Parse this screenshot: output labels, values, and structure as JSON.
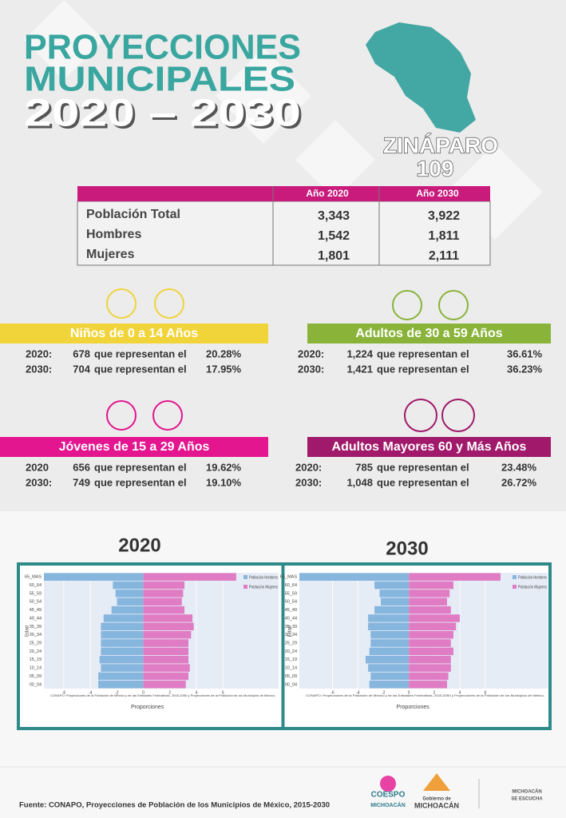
{
  "header": {
    "title_lines": [
      "PROYECCIONES",
      "MUNICIPALES",
      "2020 – 2030"
    ],
    "municipality": "ZINÁPARO",
    "code": "109"
  },
  "table": {
    "columns": [
      "Año 2020",
      "Año 2030"
    ],
    "rows": [
      [
        "Población Total",
        "3,343",
        "3,922"
      ],
      [
        "Hombres",
        "1,542",
        "1,811"
      ],
      [
        "Mujeres",
        "1,801",
        "2,111"
      ]
    ]
  },
  "groups": [
    {
      "title": "Niños de 0 a 14 Años",
      "lines": [
        {
          "year": "2020:",
          "count": "678",
          "text": "que representan el",
          "pct": "20.28%"
        },
        {
          "year": "2030:",
          "count": "704",
          "text": "que representan el",
          "pct": "17.95%"
        }
      ]
    },
    {
      "title": "Adultos de 30 a 59 Años",
      "lines": [
        {
          "year": "2020:",
          "count": "1,224",
          "text": "que representan el",
          "pct": "36.61%"
        },
        {
          "year": "2030:",
          "count": "1,421",
          "text": "que representan el",
          "pct": "36.23%"
        }
      ]
    },
    {
      "title": "Jóvenes de 15 a 29 Años",
      "lines": [
        {
          "year": "2020",
          "count": "656",
          "text": "que representan el",
          "pct": "19.62%"
        },
        {
          "year": "2030:",
          "count": "749",
          "text": "que representan el",
          "pct": "19.10%"
        }
      ]
    },
    {
      "title": "Adultos Mayores  60 y Más Años",
      "lines": [
        {
          "year": "2020:",
          "count": "785",
          "text": "que representan el",
          "pct": "23.48%"
        },
        {
          "year": "2030:",
          "count": "1,048",
          "text": "que representan el",
          "pct": "26.72%"
        }
      ]
    }
  ],
  "chart_data": [
    {
      "type": "pyramid",
      "title": "2020",
      "x_label": "Proporciones",
      "y_label": "Edad",
      "note": "CONAPO: Proyecciones de la Población de México y de las Entidades Federativas, 2016-2050 y Proyecciones de la Población de los Municipios de México,",
      "categories": [
        "65_MAS",
        "60_64",
        "55_59",
        "50_54",
        "45_49",
        "40_44",
        "35_39",
        "30_34",
        "25_29",
        "20_24",
        "15_19",
        "10_14",
        "05_09",
        "00_04"
      ],
      "series": [
        {
          "name": "Población Hombres",
          "color": "#86b5de",
          "values": [
            -7.5,
            -2.3,
            -2.1,
            -2.0,
            -2.4,
            -3.0,
            -3.2,
            -3.2,
            -3.2,
            -3.2,
            -3.3,
            -3.2,
            -3.4,
            -3.4
          ]
        },
        {
          "name": "Población Mujeres",
          "color": "#e07cc4",
          "values": [
            7.0,
            3.1,
            3.0,
            2.9,
            3.1,
            3.7,
            3.8,
            3.6,
            3.4,
            3.4,
            3.4,
            3.5,
            3.4,
            3.2
          ]
        }
      ],
      "xlim": [
        -7.5,
        10.2
      ],
      "xticks": [
        -6,
        -4,
        -2,
        0,
        2,
        4,
        6
      ],
      "grid": true
    },
    {
      "type": "pyramid",
      "title": "2030",
      "x_label": "Proporciones",
      "y_label": "Edad",
      "note": "CONAPO: Proyecciones de la Población de México y de las Entidades Federativas, 2016-2050 y Proyecciones de la Población de los Municipios de México,",
      "categories": [
        "65_MAS",
        "60_64",
        "55_59",
        "50_54",
        "45_49",
        "40_44",
        "35_39",
        "30_34",
        "25_29",
        "20_24",
        "15_19",
        "10_14",
        "05_09",
        "00_04"
      ],
      "series": [
        {
          "name": "Población Hombres",
          "color": "#86b5de",
          "values": [
            -8.6,
            -2.7,
            -2.3,
            -2.2,
            -2.7,
            -3.2,
            -3.2,
            -3.0,
            -3.0,
            -3.1,
            -3.4,
            -3.2,
            -3.0,
            -3.1
          ]
        },
        {
          "name": "Población Mujeres",
          "color": "#e07cc4",
          "values": [
            7.2,
            3.5,
            3.2,
            3.0,
            3.3,
            4.0,
            3.7,
            3.5,
            3.3,
            3.5,
            3.3,
            3.3,
            3.1,
            3.0
          ]
        }
      ],
      "xlim": [
        -8.6,
        10.9
      ],
      "xticks": [
        -6,
        -4,
        -2,
        0,
        2,
        4,
        6
      ],
      "grid": true
    }
  ],
  "footer": {
    "source": "Fuente: CONAPO, Proyecciones de Población de los Municipios de México, 2015-2030",
    "logos": [
      "COESPO",
      "MICHOACÁN",
      "Gobierno de",
      "MICHOACÁN",
      "MICHOACÁN",
      "SE ESCUCHA"
    ]
  }
}
